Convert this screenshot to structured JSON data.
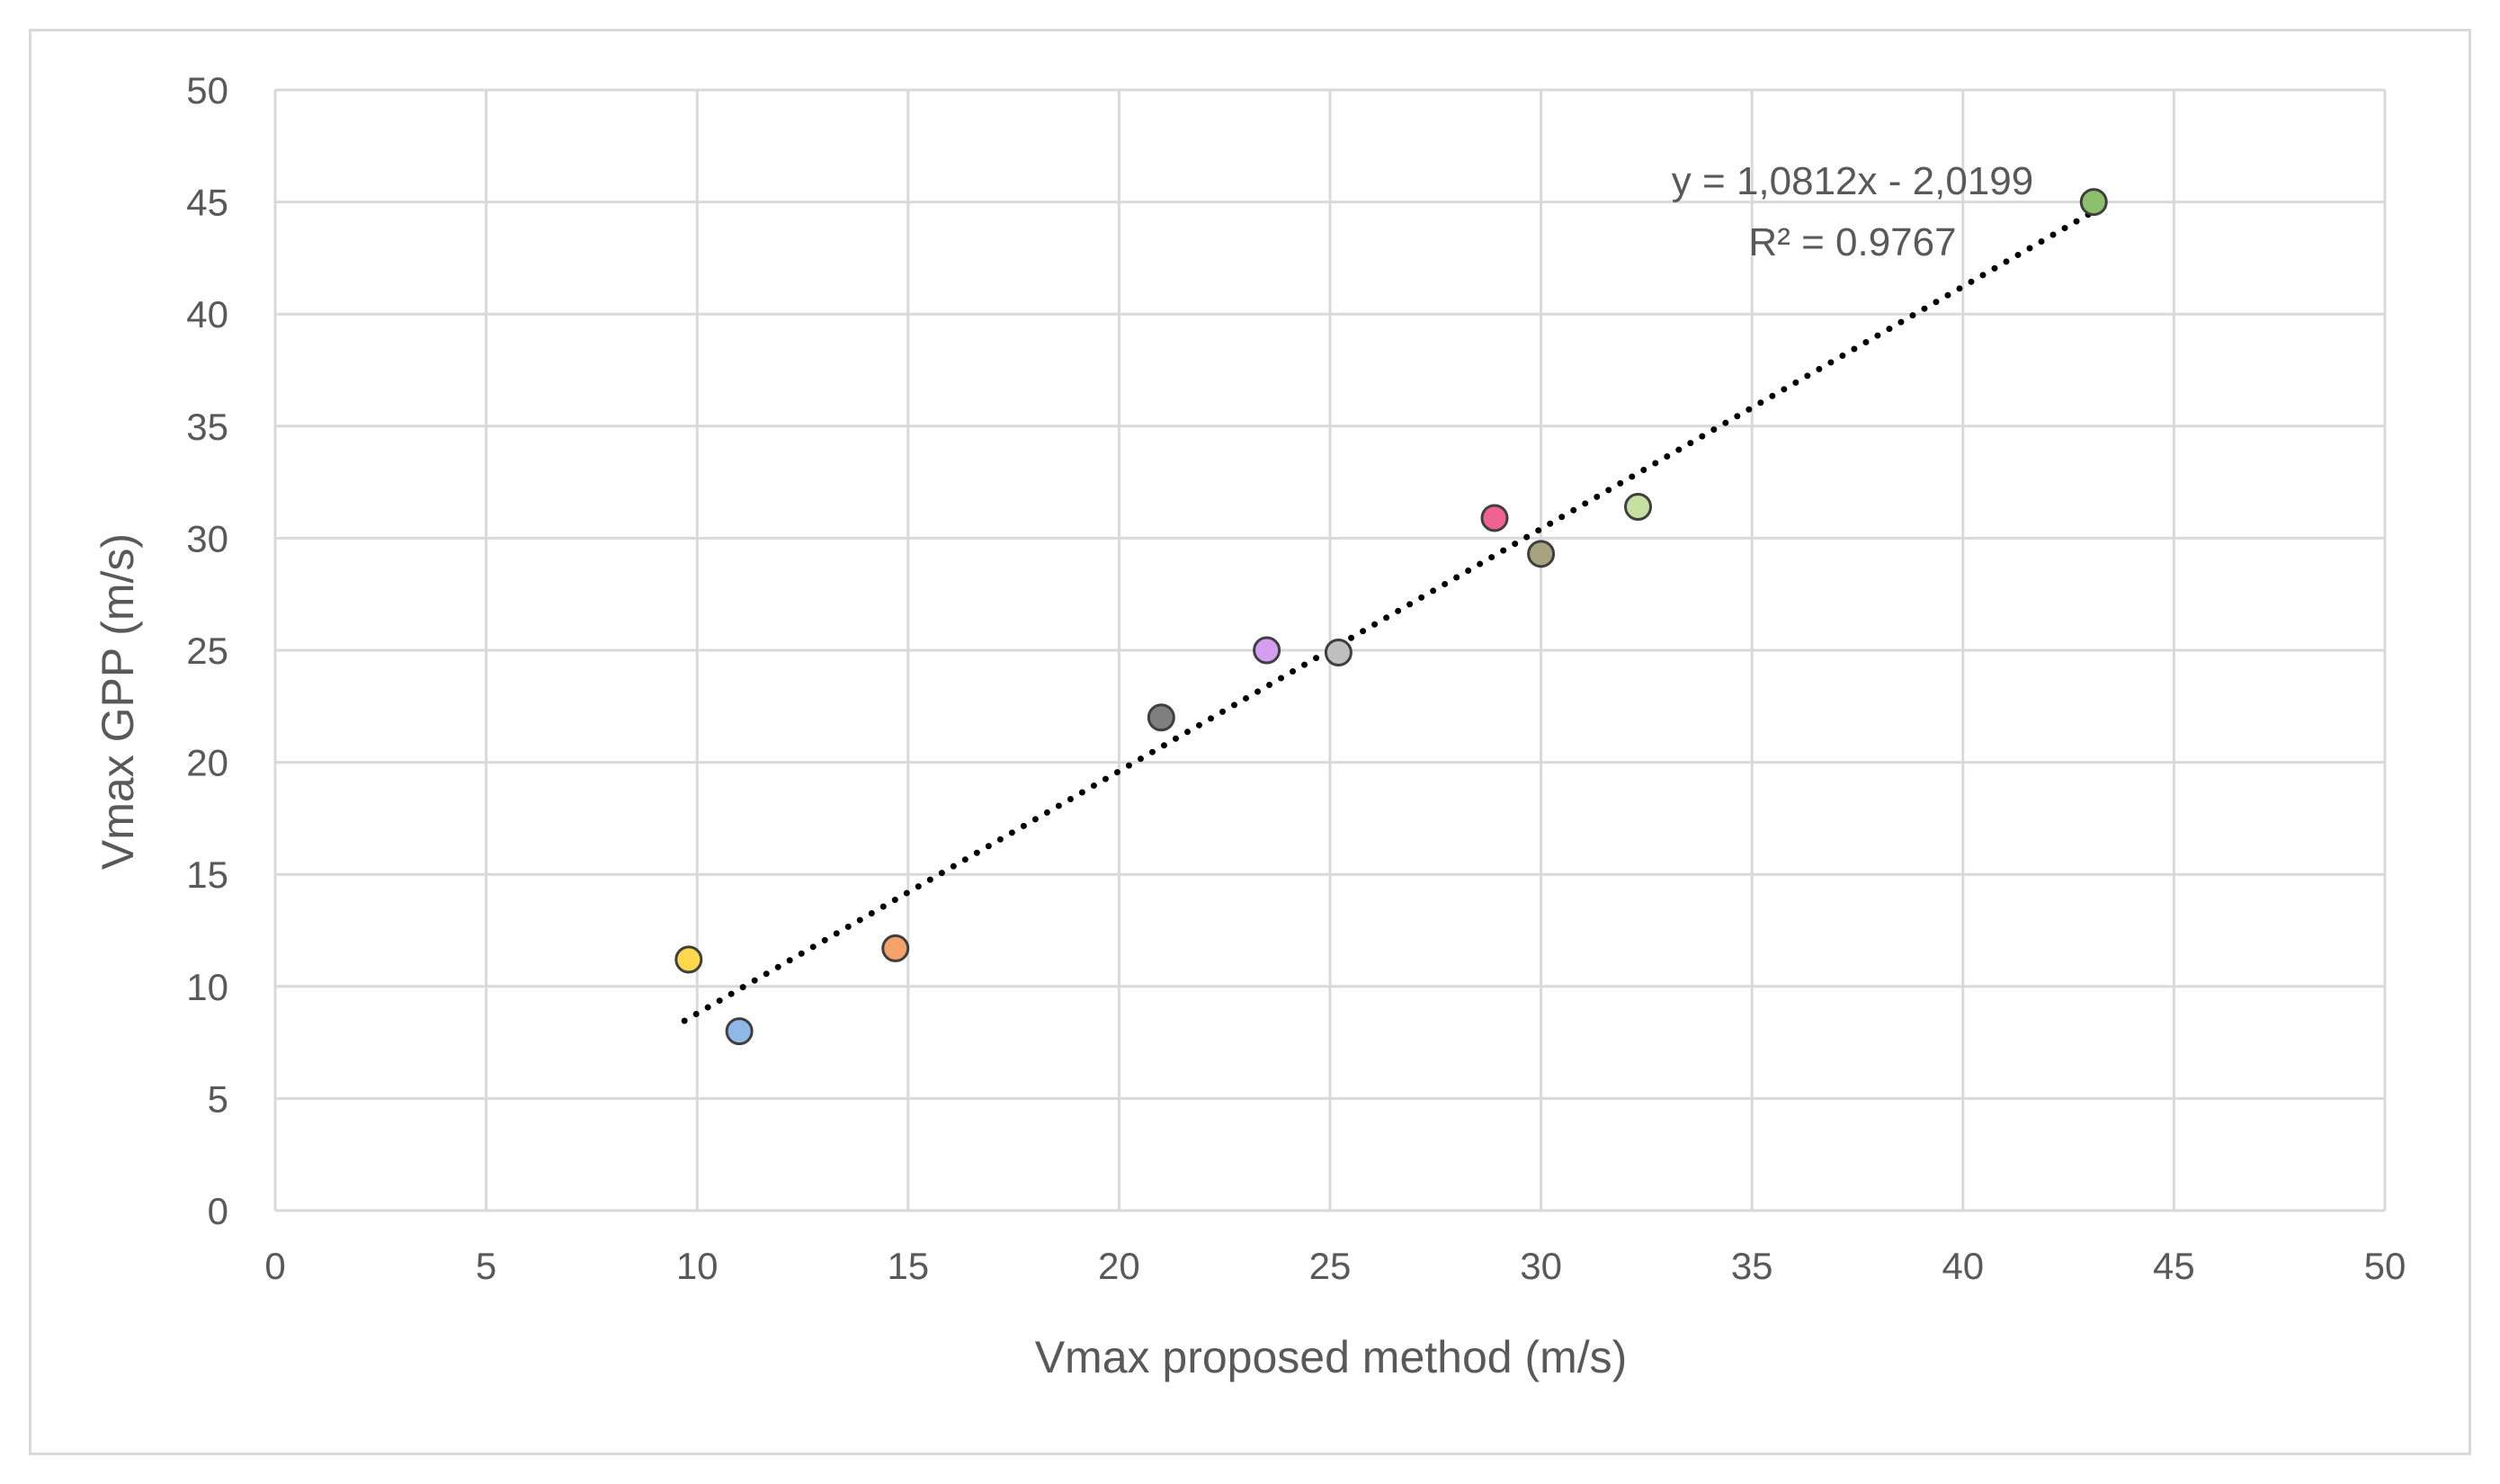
{
  "chart_data": {
    "type": "scatter",
    "title": "",
    "xlabel": "Vmax proposed method (m/s)",
    "ylabel": "Vmax GPP (m/s)",
    "xlim": [
      0,
      50
    ],
    "ylim": [
      0,
      50
    ],
    "x_ticks": [
      "0",
      "5",
      "10",
      "15",
      "20",
      "25",
      "30",
      "35",
      "40",
      "45",
      "50"
    ],
    "y_ticks": [
      "0",
      "5",
      "10",
      "15",
      "20",
      "25",
      "30",
      "35",
      "40",
      "45",
      "50"
    ],
    "grid": true,
    "legend": "none",
    "points": [
      {
        "x": 9.8,
        "y": 11.2,
        "color": "#ffd84d"
      },
      {
        "x": 11.0,
        "y": 8.0,
        "color": "#8fb8e6"
      },
      {
        "x": 14.7,
        "y": 11.7,
        "color": "#f4a26a"
      },
      {
        "x": 21.0,
        "y": 22.0,
        "color": "#7f7f7f"
      },
      {
        "x": 23.5,
        "y": 25.0,
        "color": "#d49ef0"
      },
      {
        "x": 25.2,
        "y": 24.9,
        "color": "#bfbfbf"
      },
      {
        "x": 28.9,
        "y": 30.9,
        "color": "#f06292"
      },
      {
        "x": 30.0,
        "y": 29.3,
        "color": "#a8a37f"
      },
      {
        "x": 32.3,
        "y": 31.4,
        "color": "#c5e0a0"
      },
      {
        "x": 43.1,
        "y": 45.0,
        "color": "#8dc06b"
      }
    ],
    "trendline": {
      "type": "linear",
      "slope": 1.0812,
      "intercept": -2.0199,
      "x_start": 9.7,
      "x_end": 43.1,
      "style": "dotted",
      "equation": "y = 1,0812x - 2,0199",
      "r_squared": "R² = 0.9767"
    }
  }
}
